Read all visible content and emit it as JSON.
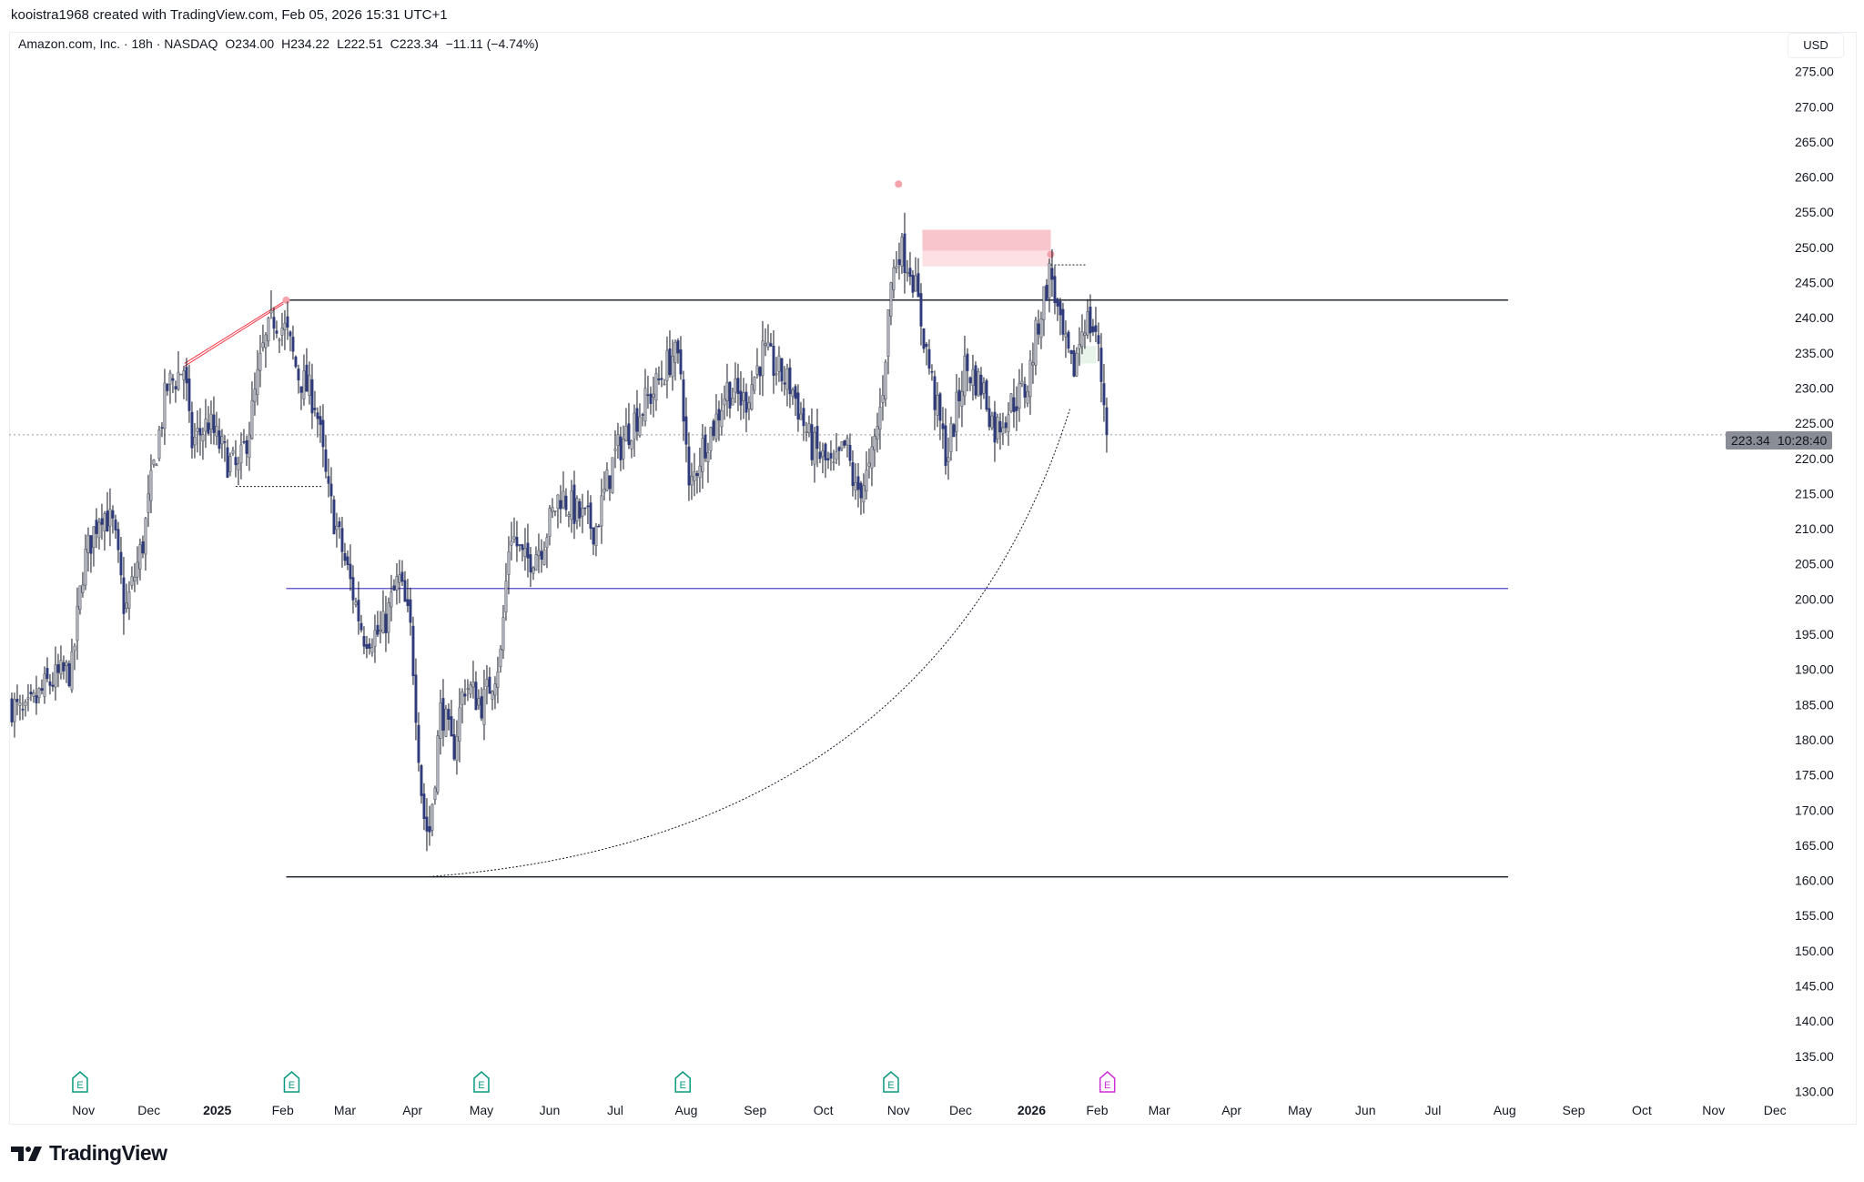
{
  "caption": "kooistra1968 created with TradingView.com, Feb 05, 2026 15:31 UTC+1",
  "legend": {
    "symbol": "Amazon.com, Inc. · 18h · NASDAQ",
    "open": "O234.00",
    "high": "H234.22",
    "low": "L222.51",
    "close": "C223.34",
    "change": "−11.11 (−4.74%)"
  },
  "currency": "USD",
  "last_price": {
    "price": "223.34",
    "countdown": "10:28:40"
  },
  "brand": "TradingView",
  "colors": {
    "up": "#b2b5be",
    "down": "#2e3a7a",
    "wick": "#131722",
    "purple_line": "#5448c8",
    "red": "#f23645",
    "zone": "#f9c5cd"
  },
  "chart_data": {
    "type": "candlestick",
    "title": "Amazon.com, Inc. · 18h · NASDAQ",
    "ylabel": "USD",
    "ylim": [
      130,
      275
    ],
    "y_ticks": [
      "275.00",
      "270.00",
      "265.00",
      "260.00",
      "255.00",
      "250.00",
      "245.00",
      "240.00",
      "235.00",
      "230.00",
      "225.00",
      "220.00",
      "215.00",
      "210.00",
      "205.00",
      "200.00",
      "195.00",
      "190.00",
      "185.00",
      "180.00",
      "175.00",
      "170.00",
      "165.00",
      "160.00",
      "155.00",
      "150.00",
      "145.00",
      "140.00",
      "135.00",
      "130.00"
    ],
    "x_ticks": [
      {
        "label": "Nov",
        "t": 0,
        "bold": false
      },
      {
        "label": "Dec",
        "t": 0.96,
        "bold": false
      },
      {
        "label": "2025",
        "t": 1.96,
        "bold": true
      },
      {
        "label": "Feb",
        "t": 2.92,
        "bold": false
      },
      {
        "label": "Mar",
        "t": 3.83,
        "bold": false
      },
      {
        "label": "Apr",
        "t": 4.82,
        "bold": false
      },
      {
        "label": "May",
        "t": 5.83,
        "bold": false
      },
      {
        "label": "Jun",
        "t": 6.83,
        "bold": false
      },
      {
        "label": "Jul",
        "t": 7.79,
        "bold": false
      },
      {
        "label": "Aug",
        "t": 8.83,
        "bold": false
      },
      {
        "label": "Sep",
        "t": 9.84,
        "bold": false
      },
      {
        "label": "Oct",
        "t": 10.84,
        "bold": false
      },
      {
        "label": "Nov",
        "t": 11.94,
        "bold": false
      },
      {
        "label": "Dec",
        "t": 12.85,
        "bold": false
      },
      {
        "label": "2026",
        "t": 13.89,
        "bold": true
      },
      {
        "label": "Feb",
        "t": 14.85,
        "bold": false
      },
      {
        "label": "Mar",
        "t": 15.76,
        "bold": false
      },
      {
        "label": "Apr",
        "t": 16.82,
        "bold": false
      },
      {
        "label": "May",
        "t": 17.82,
        "bold": false
      },
      {
        "label": "Jun",
        "t": 18.78,
        "bold": false
      },
      {
        "label": "Jul",
        "t": 19.77,
        "bold": false
      },
      {
        "label": "Aug",
        "t": 20.82,
        "bold": false
      },
      {
        "label": "Sep",
        "t": 21.83,
        "bold": false
      },
      {
        "label": "Oct",
        "t": 22.83,
        "bold": false
      },
      {
        "label": "Nov",
        "t": 23.88,
        "bold": false
      },
      {
        "label": "Dec",
        "t": 24.78,
        "bold": false
      }
    ],
    "x_unit": "months since Nov 2024",
    "price_path": [
      [
        -1.05,
        185
      ],
      [
        -0.87,
        183
      ],
      [
        -0.52,
        188
      ],
      [
        -0.17,
        190
      ],
      [
        0,
        205
      ],
      [
        0.26,
        213
      ],
      [
        0.44,
        210
      ],
      [
        0.61,
        198
      ],
      [
        0.87,
        208
      ],
      [
        1.05,
        220
      ],
      [
        1.22,
        230
      ],
      [
        1.48,
        233
      ],
      [
        1.57,
        222
      ],
      [
        1.83,
        225
      ],
      [
        2.09,
        220
      ],
      [
        2.27,
        218
      ],
      [
        2.44,
        225
      ],
      [
        2.62,
        235
      ],
      [
        2.79,
        240
      ],
      [
        2.97,
        238
      ],
      [
        3.14,
        232
      ],
      [
        3.4,
        228
      ],
      [
        3.58,
        215
      ],
      [
        3.84,
        205
      ],
      [
        4.1,
        195
      ],
      [
        4.36,
        195
      ],
      [
        4.62,
        203
      ],
      [
        4.8,
        195
      ],
      [
        4.97,
        170
      ],
      [
        5.06,
        166
      ],
      [
        5.24,
        185
      ],
      [
        5.41,
        178
      ],
      [
        5.58,
        188
      ],
      [
        5.85,
        185
      ],
      [
        6.11,
        192
      ],
      [
        6.25,
        210
      ],
      [
        6.46,
        205
      ],
      [
        6.72,
        208
      ],
      [
        6.98,
        215
      ],
      [
        7.24,
        212
      ],
      [
        7.5,
        210
      ],
      [
        7.77,
        220
      ],
      [
        8.03,
        225
      ],
      [
        8.38,
        230
      ],
      [
        8.64,
        235
      ],
      [
        8.76,
        232
      ],
      [
        8.87,
        215
      ],
      [
        9.08,
        222
      ],
      [
        9.25,
        225
      ],
      [
        9.42,
        230
      ],
      [
        9.69,
        228
      ],
      [
        9.95,
        235
      ],
      [
        10.12,
        233
      ],
      [
        10.38,
        230
      ],
      [
        10.65,
        222
      ],
      [
        10.99,
        218
      ],
      [
        11.17,
        222
      ],
      [
        11.31,
        215
      ],
      [
        11.52,
        218
      ],
      [
        11.69,
        228
      ],
      [
        11.83,
        245
      ],
      [
        11.95,
        250
      ],
      [
        12.13,
        247
      ],
      [
        12.3,
        238
      ],
      [
        12.48,
        228
      ],
      [
        12.65,
        220
      ],
      [
        12.91,
        233
      ],
      [
        13.18,
        230
      ],
      [
        13.35,
        224
      ],
      [
        13.61,
        228
      ],
      [
        13.82,
        230
      ],
      [
        14.0,
        240
      ],
      [
        14.17,
        247
      ],
      [
        14.31,
        238
      ],
      [
        14.49,
        232
      ],
      [
        14.66,
        240
      ],
      [
        14.83,
        238
      ],
      [
        15.01,
        223.34
      ]
    ],
    "earnings_markers": [
      {
        "t": -0.05,
        "label": "E",
        "color": "#089981"
      },
      {
        "t": 3.05,
        "label": "E",
        "color": "#089981"
      },
      {
        "t": 5.83,
        "label": "E",
        "color": "#089981"
      },
      {
        "t": 8.78,
        "label": "E",
        "color": "#089981"
      },
      {
        "t": 11.83,
        "label": "E",
        "color": "#089981"
      },
      {
        "t": 15.0,
        "label": "E",
        "color": "#cc2fd6"
      }
    ],
    "drawings": {
      "resistance_level": 242.5,
      "support_level": 160.5,
      "mid_level": 201.5,
      "level_range_t": [
        2.97,
        20.87
      ],
      "pivot_highs": [
        [
          2.97,
          242.5
        ],
        [
          11.94,
          259
        ],
        [
          14.17,
          249
        ]
      ],
      "trend_line": [
        [
          1.48,
          233.5
        ],
        [
          2.97,
          242.5
        ]
      ],
      "supply_zone": {
        "t": [
          12.29,
          14.17
        ],
        "top": 252.5,
        "mid": 249.5,
        "bottom": 247.3
      },
      "demand_zone": {
        "t": [
          14.57,
          14.83
        ],
        "top": 236,
        "bottom": 233.5
      },
      "arc": [
        [
          5.01,
          160.5
        ],
        [
          14.45,
          227
        ]
      ],
      "dotted_top": [
        [
          14.17,
          247.5
        ],
        [
          14.69,
          247.5
        ]
      ],
      "dotted_low": [
        [
          2.23,
          216
        ],
        [
          3.49,
          216
        ]
      ]
    }
  }
}
